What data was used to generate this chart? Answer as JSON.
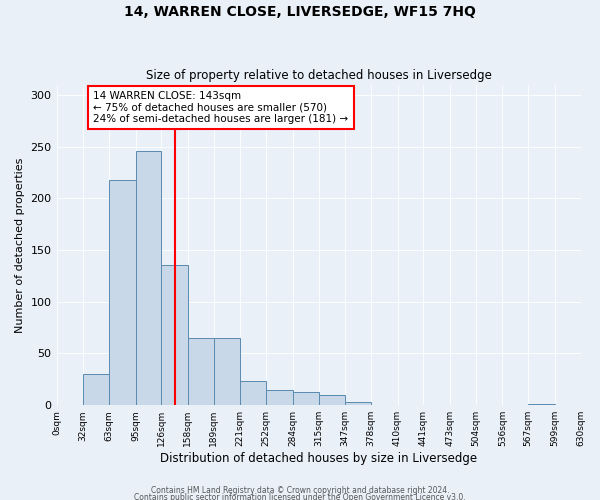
{
  "title": "14, WARREN CLOSE, LIVERSEDGE, WF15 7HQ",
  "subtitle": "Size of property relative to detached houses in Liversedge",
  "xlabel": "Distribution of detached houses by size in Liversedge",
  "ylabel": "Number of detached properties",
  "bar_color": "#c8d8e8",
  "bar_edge_color": "#5a8ab0",
  "vline_x": 143,
  "vline_color": "red",
  "annotation_text": "14 WARREN CLOSE: 143sqm\n← 75% of detached houses are smaller (570)\n24% of semi-detached houses are larger (181) →",
  "annotation_box_color": "white",
  "annotation_box_edge": "red",
  "bin_edges": [
    0,
    32,
    63,
    95,
    126,
    158,
    189,
    221,
    252,
    284,
    315,
    347,
    378,
    410,
    441,
    473,
    504,
    536,
    567,
    599,
    630
  ],
  "bin_counts": [
    0,
    30,
    218,
    246,
    136,
    65,
    65,
    23,
    15,
    13,
    10,
    3,
    0,
    0,
    0,
    0,
    0,
    0,
    1,
    0
  ],
  "ylim": [
    0,
    310
  ],
  "yticks": [
    0,
    50,
    100,
    150,
    200,
    250,
    300
  ],
  "footnote1": "Contains HM Land Registry data © Crown copyright and database right 2024.",
  "footnote2": "Contains public sector information licensed under the Open Government Licence v3.0.",
  "background_color": "#eaf0f8",
  "plot_background_color": "#eaf0f8"
}
